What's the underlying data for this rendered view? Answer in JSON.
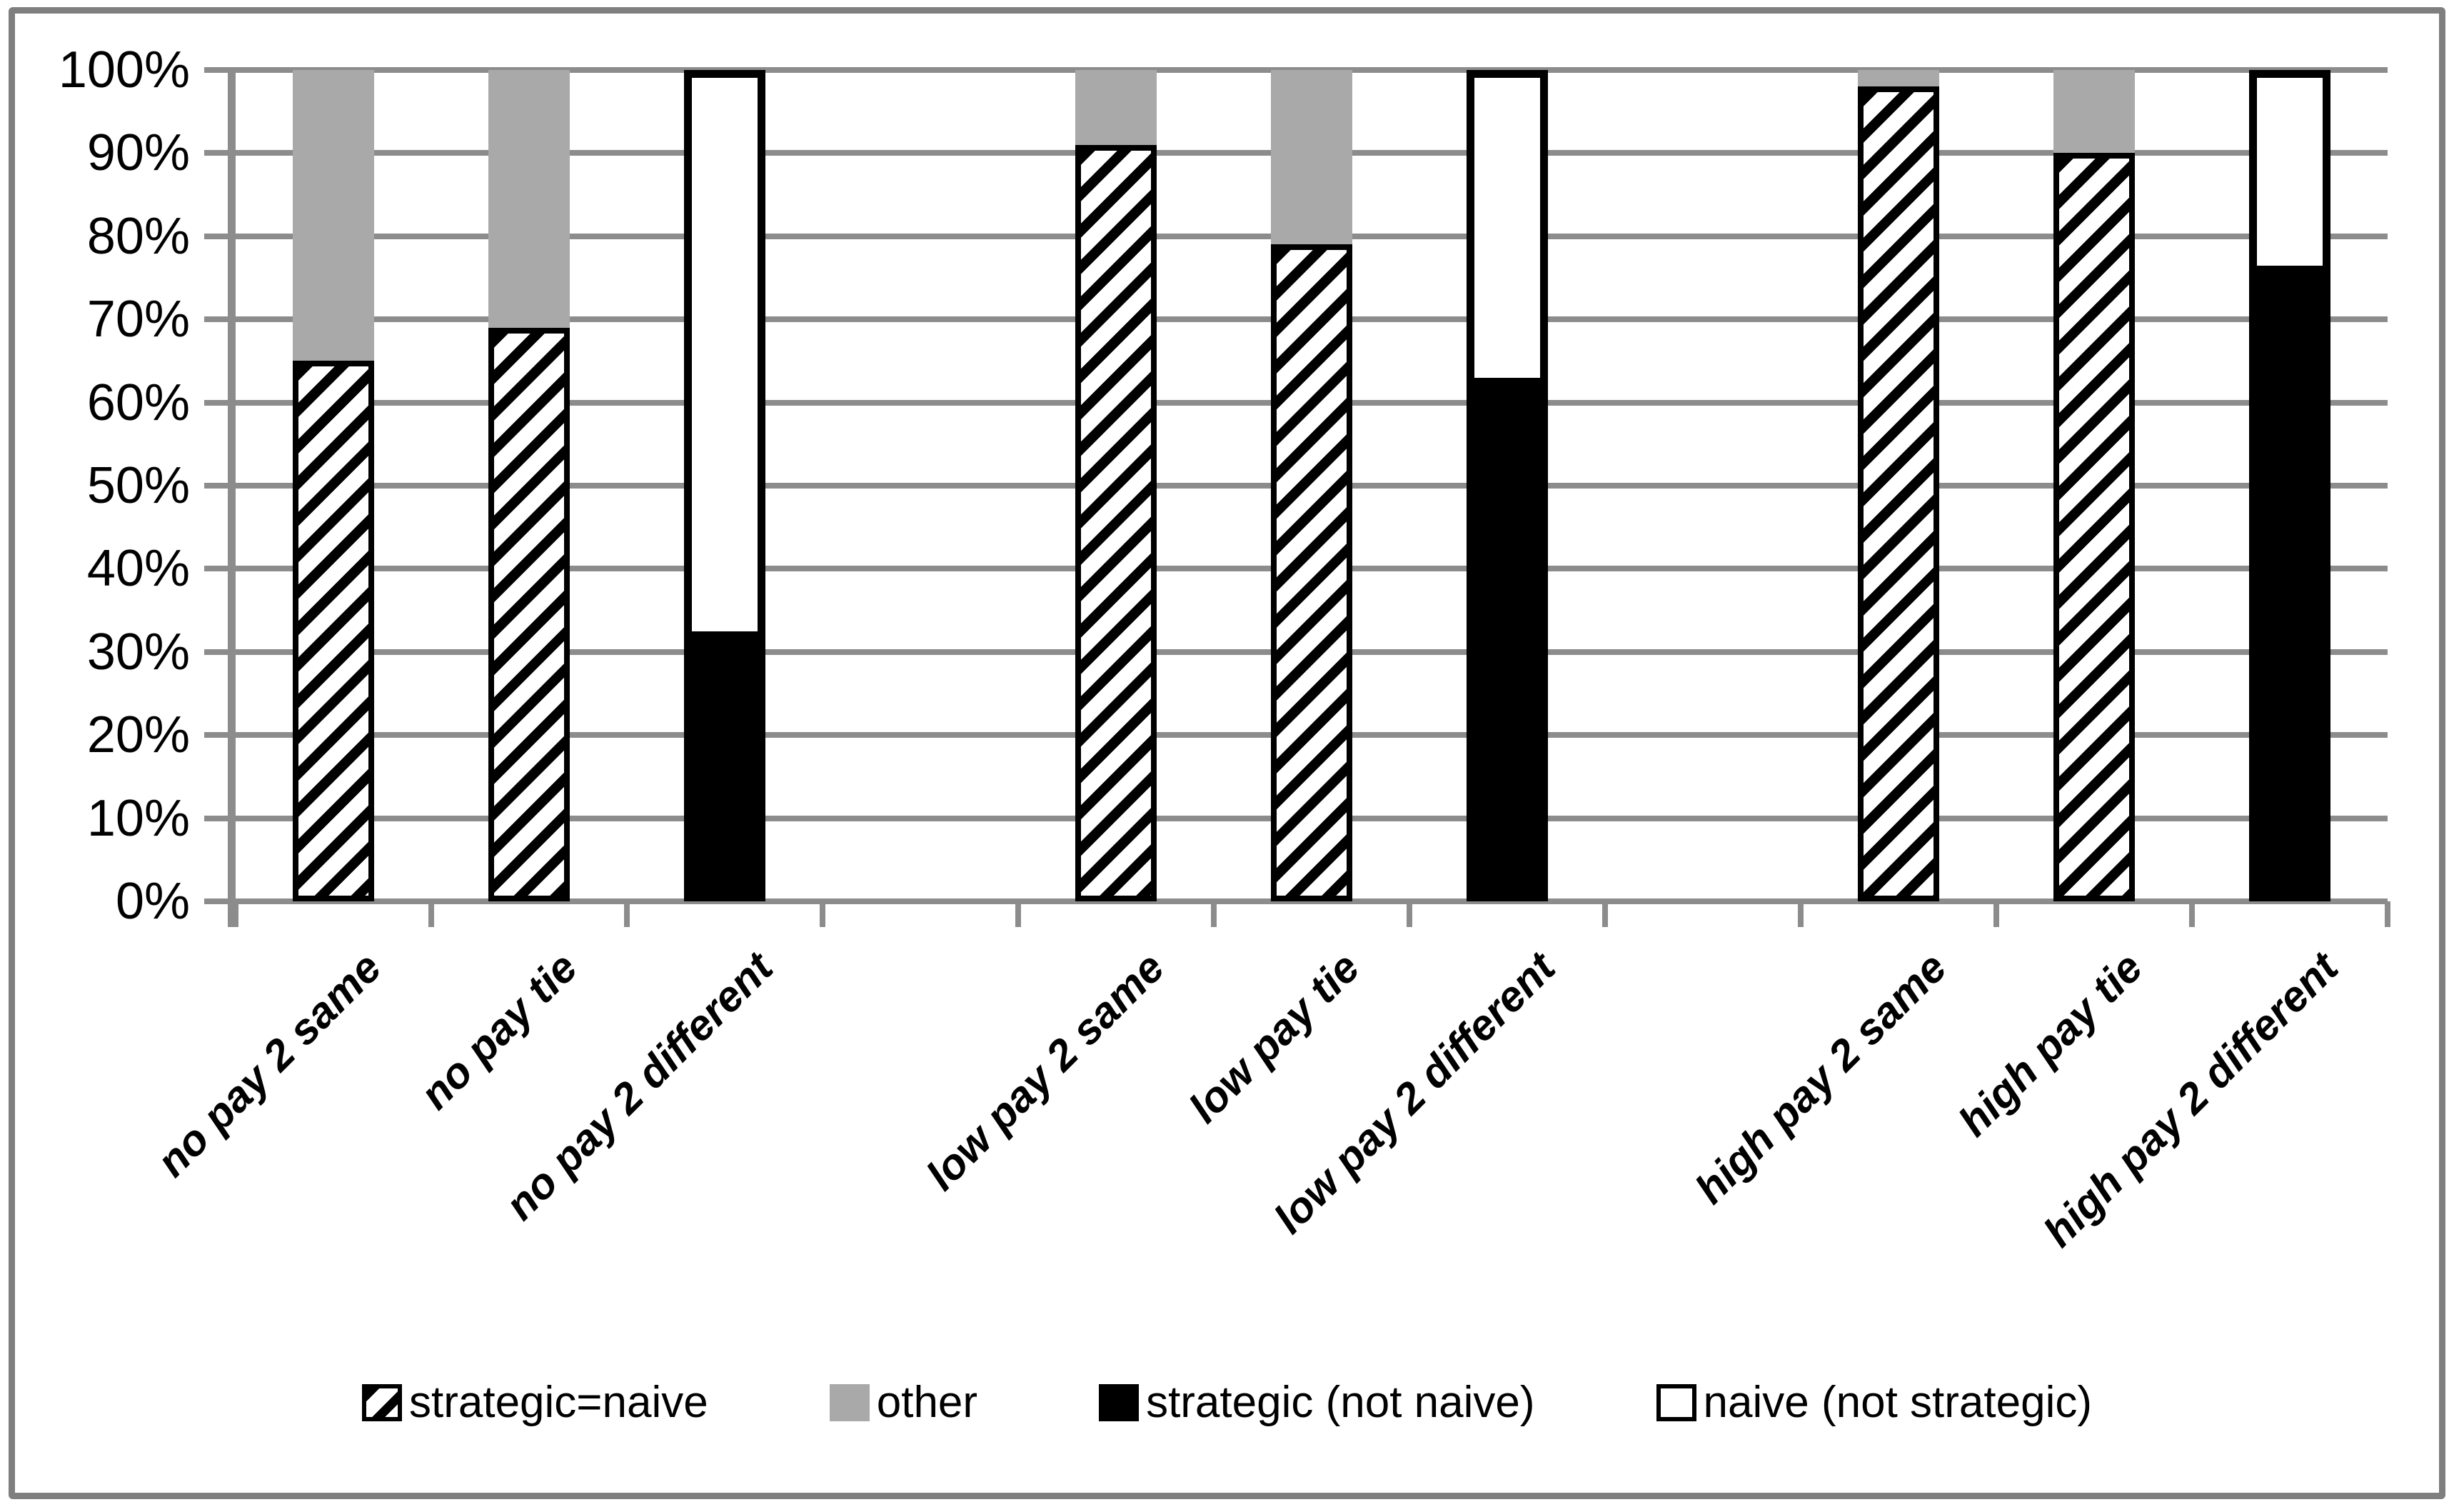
{
  "chart_data": {
    "type": "bar",
    "stacked": true,
    "title": "",
    "xlabel": "",
    "ylabel": "",
    "categories": [
      "no pay 2 same",
      "no pay tie",
      "no pay 2 different",
      "low pay 2 same",
      "low pay tie",
      "low pay 2 different",
      "high pay 2 same",
      "high pay tie",
      "high pay 2 different"
    ],
    "category_slots": [
      0,
      1,
      2,
      4,
      5,
      6,
      8,
      9,
      10
    ],
    "num_slots": 11,
    "series": [
      {
        "name": "strategic=naive",
        "style": "hatched",
        "values": [
          65,
          69,
          0,
          91,
          79,
          0,
          98,
          90,
          0
        ]
      },
      {
        "name": "other",
        "style": "gray",
        "values": [
          35,
          31,
          0,
          9,
          21,
          0,
          2,
          10,
          0
        ]
      },
      {
        "name": "strategic (not naive)",
        "style": "black",
        "values": [
          0,
          0,
          31.5,
          0,
          0,
          62,
          0,
          0,
          75.5
        ]
      },
      {
        "name": "naive (not strategic)",
        "style": "white",
        "values": [
          0,
          0,
          68.5,
          0,
          0,
          38,
          0,
          0,
          24.5
        ]
      }
    ],
    "ylim": [
      0,
      100
    ],
    "ytick_labels": [
      "100%",
      "90%",
      "80%",
      "70%",
      "60%",
      "50%",
      "40%",
      "30%",
      "20%",
      "10%",
      "0%"
    ],
    "grid": true,
    "legend_position": "bottom"
  },
  "colors": {
    "gridline": "#8c8c8c",
    "axis": "#8c8c8c",
    "frame_border": "#7f7f7f",
    "other_fill": "#a9a9a9",
    "bar_border": "#000000",
    "text": "#000000",
    "background": "#ffffff"
  }
}
